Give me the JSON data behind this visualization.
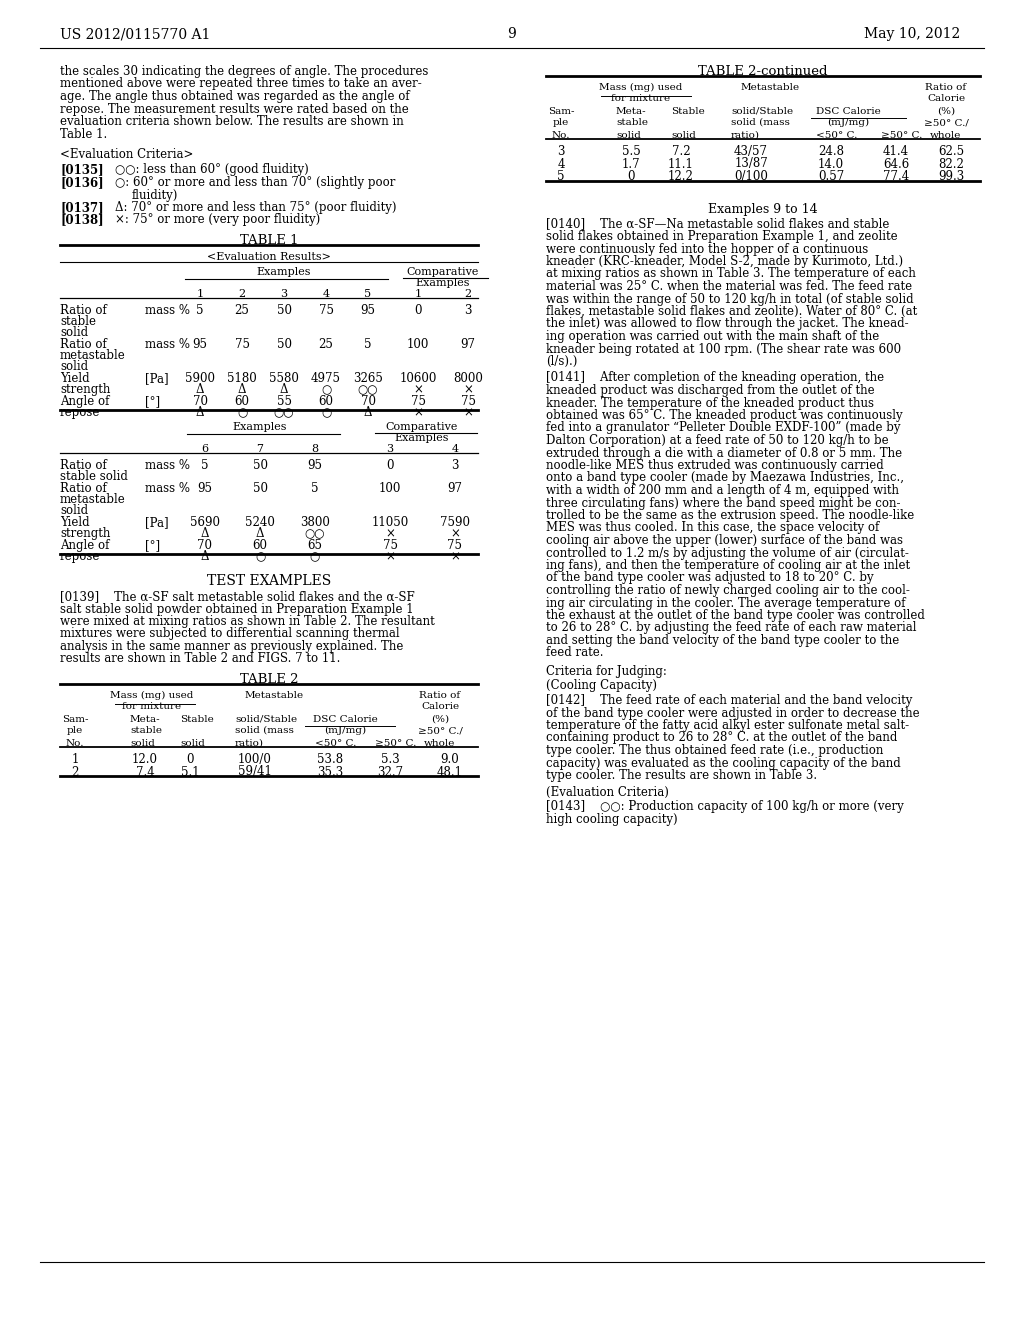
{
  "page_number": "9",
  "header_left": "US 2012/0115770 A1",
  "header_right": "May 10, 2012",
  "background_color": "#ffffff",
  "left_col": {
    "para1_lines": [
      "the scales 30 indicating the degrees of angle. The procedures",
      "mentioned above were repeated three times to take an aver-",
      "age. The angle thus obtained was regarded as the angle of",
      "repose. The measurement results were rated based on the",
      "evaluation criteria shown below. The results are shown in",
      "Table 1."
    ],
    "eval_header": "<Evaluation Criteria>",
    "crit135_num": "[0135]",
    "crit135_text": "○○: less than 60° (good fluidity)",
    "crit136_num": "[0136]",
    "crit136_line1": "○: 60° or more and less than 70° (slightly poor",
    "crit136_line2": "fluidity)",
    "crit137_num": "[0137]",
    "crit137_text": "Δ: 70° or more and less than 75° (poor fluidity)",
    "crit138_num": "[0138]",
    "crit138_text": "×: 75° or more (very poor fluidity)",
    "table1_title": "TABLE 1",
    "table1_subtitle": "<Evaluation Results>",
    "t1_ex_nums": [
      "1",
      "2",
      "3",
      "4",
      "5",
      "1",
      "2"
    ],
    "t1_ratio_stable": [
      "5",
      "25",
      "50",
      "75",
      "95",
      "0",
      "3"
    ],
    "t1_ratio_meta": [
      "95",
      "75",
      "50",
      "25",
      "5",
      "100",
      "97"
    ],
    "t1_yield": [
      "5900",
      "5180",
      "5580",
      "4975",
      "3265",
      "10600",
      "8000"
    ],
    "t1_yield_sym": [
      "Δ",
      "Δ",
      "Δ",
      "○",
      "○○",
      "×",
      "×"
    ],
    "t1_angle": [
      "70",
      "60",
      "55",
      "60",
      "70",
      "75",
      "75"
    ],
    "t1_angle_sym": [
      "Δ",
      "○",
      "○○",
      "○",
      "Δ",
      "×",
      "×"
    ],
    "t1b_ex_nums": [
      "6",
      "7",
      "8",
      "3",
      "4"
    ],
    "t1b_ratio_stable": [
      "5",
      "50",
      "95",
      "0",
      "3"
    ],
    "t1b_ratio_meta": [
      "95",
      "50",
      "5",
      "100",
      "97"
    ],
    "t1b_yield": [
      "5690",
      "5240",
      "3800",
      "11050",
      "7590"
    ],
    "t1b_yield_sym": [
      "Δ",
      "Δ",
      "○○",
      "×",
      "×"
    ],
    "t1b_angle": [
      "70",
      "60",
      "65",
      "75",
      "75"
    ],
    "t1b_angle_sym": [
      "Δ",
      "○",
      "○",
      "×",
      "×"
    ],
    "test_examples": "TEST EXAMPLES",
    "p139_lines": [
      "[0139]    The α-SF salt metastable solid flakes and the α-SF",
      "salt stable solid powder obtained in Preparation Example 1",
      "were mixed at mixing ratios as shown in Table 2. The resultant",
      "mixtures were subjected to differential scanning thermal",
      "analysis in the same manner as previously explained. The",
      "results are shown in Table 2 and FIGS. 7 to 11."
    ],
    "table2_title": "TABLE 2",
    "t2_rows": [
      [
        "1",
        "12.0",
        "0",
        "100/0",
        "53.8",
        "5.3",
        "9.0"
      ],
      [
        "2",
        "7.4",
        "5.1",
        "59/41",
        "35.3",
        "32.7",
        "48.1"
      ]
    ]
  },
  "right_col": {
    "table2cont_title": "TABLE 2-continued",
    "t2c_rows": [
      [
        "3",
        "5.5",
        "7.2",
        "43/57",
        "24.8",
        "41.4",
        "62.5"
      ],
      [
        "4",
        "1.7",
        "11.1",
        "13/87",
        "14.0",
        "64.6",
        "82.2"
      ],
      [
        "5",
        "0",
        "12.2",
        "0/100",
        "0.57",
        "77.4",
        "99.3"
      ]
    ],
    "examples_9_14": "Examples 9 to 14",
    "p140_lines": [
      "[0140]    The α-SF—Na metastable solid flakes and stable",
      "solid flakes obtained in Preparation Example 1, and zeolite",
      "were continuously fed into the hopper of a continuous",
      "kneader (KRC-kneader, Model S-2, made by Kurimoto, Ltd.)",
      "at mixing ratios as shown in Table 3. The temperature of each",
      "material was 25° C. when the material was fed. The feed rate",
      "was within the range of 50 to 120 kg/h in total (of stable solid",
      "flakes, metastable solid flakes and zeolite). Water of 80° C. (at",
      "the inlet) was allowed to flow through the jacket. The knead-",
      "ing operation was carried out with the main shaft of the",
      "kneader being rotated at 100 rpm. (The shear rate was 600",
      "(l/s).)"
    ],
    "p141_lines": [
      "[0141]    After completion of the kneading operation, the",
      "kneaded product was discharged from the outlet of the",
      "kneader. The temperature of the kneaded product thus",
      "obtained was 65° C. The kneaded product was continuously",
      "fed into a granulator “Pelleter Double EXDF-100” (made by",
      "Dalton Corporation) at a feed rate of 50 to 120 kg/h to be",
      "extruded through a die with a diameter of 0.8 or 5 mm. The",
      "noodle-like MES thus extruded was continuously carried",
      "onto a band type cooler (made by Maezawa Industries, Inc.,",
      "with a width of 200 mm and a length of 4 m, equipped with",
      "three circulating fans) where the band speed might be con-",
      "trolled to be the same as the extrusion speed. The noodle-like",
      "MES was thus cooled. In this case, the space velocity of",
      "cooling air above the upper (lower) surface of the band was",
      "controlled to 1.2 m/s by adjusting the volume of air (circulat-",
      "ing fans), and then the temperature of cooling air at the inlet",
      "of the band type cooler was adjusted to 18 to 20° C. by",
      "controlling the ratio of newly charged cooling air to the cool-",
      "ing air circulating in the cooler. The average temperature of",
      "the exhaust at the outlet of the band type cooler was controlled",
      "to 26 to 28° C. by adjusting the feed rate of each raw material",
      "and setting the band velocity of the band type cooler to the",
      "feed rate."
    ],
    "criteria_judging": "Criteria for Judging:",
    "cooling_capacity": "(Cooling Capacity)",
    "p142_lines": [
      "[0142]    The feed rate of each material and the band velocity",
      "of the band type cooler were adjusted in order to decrease the",
      "temperature of the fatty acid alkyl ester sulfonate metal salt-",
      "containing product to 26 to 28° C. at the outlet of the band",
      "type cooler. The thus obtained feed rate (i.e., production",
      "capacity) was evaluated as the cooling capacity of the band",
      "type cooler. The results are shown in Table 3."
    ],
    "eval_criteria": "(Evaluation Criteria)",
    "p143_lines": [
      "[0143]    ○○: Production capacity of 100 kg/h or more (very",
      "high cooling capacity)"
    ]
  }
}
